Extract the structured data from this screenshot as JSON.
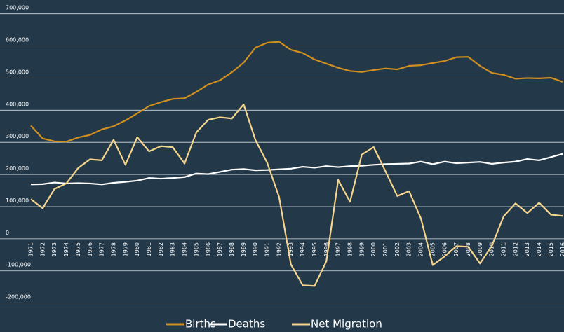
{
  "chart_data": {
    "type": "line",
    "categories": [
      "1971",
      "1972",
      "1973",
      "1974",
      "1975",
      "1976",
      "1977",
      "1978",
      "1979",
      "1980",
      "1981",
      "1982",
      "1983",
      "1984",
      "1985",
      "1986",
      "1987",
      "1988",
      "1989",
      "1990",
      "1991",
      "1992",
      "1993",
      "1994",
      "1995",
      "1996",
      "1997",
      "1998",
      "1999",
      "2000",
      "2001",
      "2002",
      "2003",
      "2004",
      "2005",
      "2006",
      "2007",
      "2008",
      "2009",
      "2010",
      "2011",
      "2012",
      "2013",
      "2014",
      "2015",
      "2016"
    ],
    "series": [
      {
        "name": "Births",
        "color": "#d18f1f",
        "values": [
          352000,
          312000,
          303000,
          302000,
          315000,
          323000,
          340000,
          350000,
          368000,
          390000,
          413000,
          425000,
          435000,
          437000,
          457000,
          480000,
          493000,
          518000,
          548000,
          595000,
          610000,
          613000,
          588000,
          578000,
          558000,
          545000,
          532000,
          522000,
          519000,
          525000,
          530000,
          527000,
          538000,
          540000,
          547000,
          553000,
          565000,
          566000,
          538000,
          516000,
          510000,
          498000,
          500000,
          499000,
          501000,
          488000
        ]
      },
      {
        "name": "Deaths",
        "color": "#ffffff",
        "values": [
          169000,
          170000,
          175000,
          172000,
          173000,
          172000,
          169000,
          174000,
          177000,
          181000,
          189000,
          187000,
          189000,
          192000,
          203000,
          201000,
          208000,
          215000,
          217000,
          213000,
          214000,
          216000,
          218000,
          224000,
          221000,
          226000,
          223000,
          226000,
          227000,
          230000,
          232000,
          233000,
          234000,
          240000,
          232000,
          240000,
          235000,
          237000,
          239000,
          233000,
          237000,
          240000,
          248000,
          244000,
          254000,
          264000
        ]
      },
      {
        "name": "Net Migration",
        "color": "#f6d58c",
        "values": [
          123000,
          95000,
          155000,
          172000,
          220000,
          247000,
          244000,
          308000,
          230000,
          316000,
          272000,
          288000,
          285000,
          234000,
          331000,
          370000,
          378000,
          374000,
          418000,
          307000,
          236000,
          130000,
          -80000,
          -145000,
          -147000,
          -70000,
          183000,
          115000,
          262000,
          285000,
          210000,
          133000,
          148000,
          63000,
          -82000,
          -55000,
          -23000,
          -25000,
          -77000,
          -22000,
          70000,
          110000,
          80000,
          112000,
          75000,
          71000
        ]
      }
    ],
    "ylim": [
      -200000,
      700000
    ],
    "yticks": [
      {
        "value": -200000,
        "label": "-200,000"
      },
      {
        "value": -100000,
        "label": "-100,000"
      },
      0,
      {
        "value": 100000,
        "label": "100,000"
      },
      {
        "value": 200000,
        "label": "200,000"
      },
      {
        "value": 300000,
        "label": "300,000"
      },
      {
        "value": 400000,
        "label": "400,000"
      },
      {
        "value": 500000,
        "label": "500,000"
      },
      {
        "value": 600000,
        "label": "600,000"
      },
      {
        "value": 700000,
        "label": "700,000"
      }
    ],
    "grid": true,
    "legend": "bottom"
  }
}
